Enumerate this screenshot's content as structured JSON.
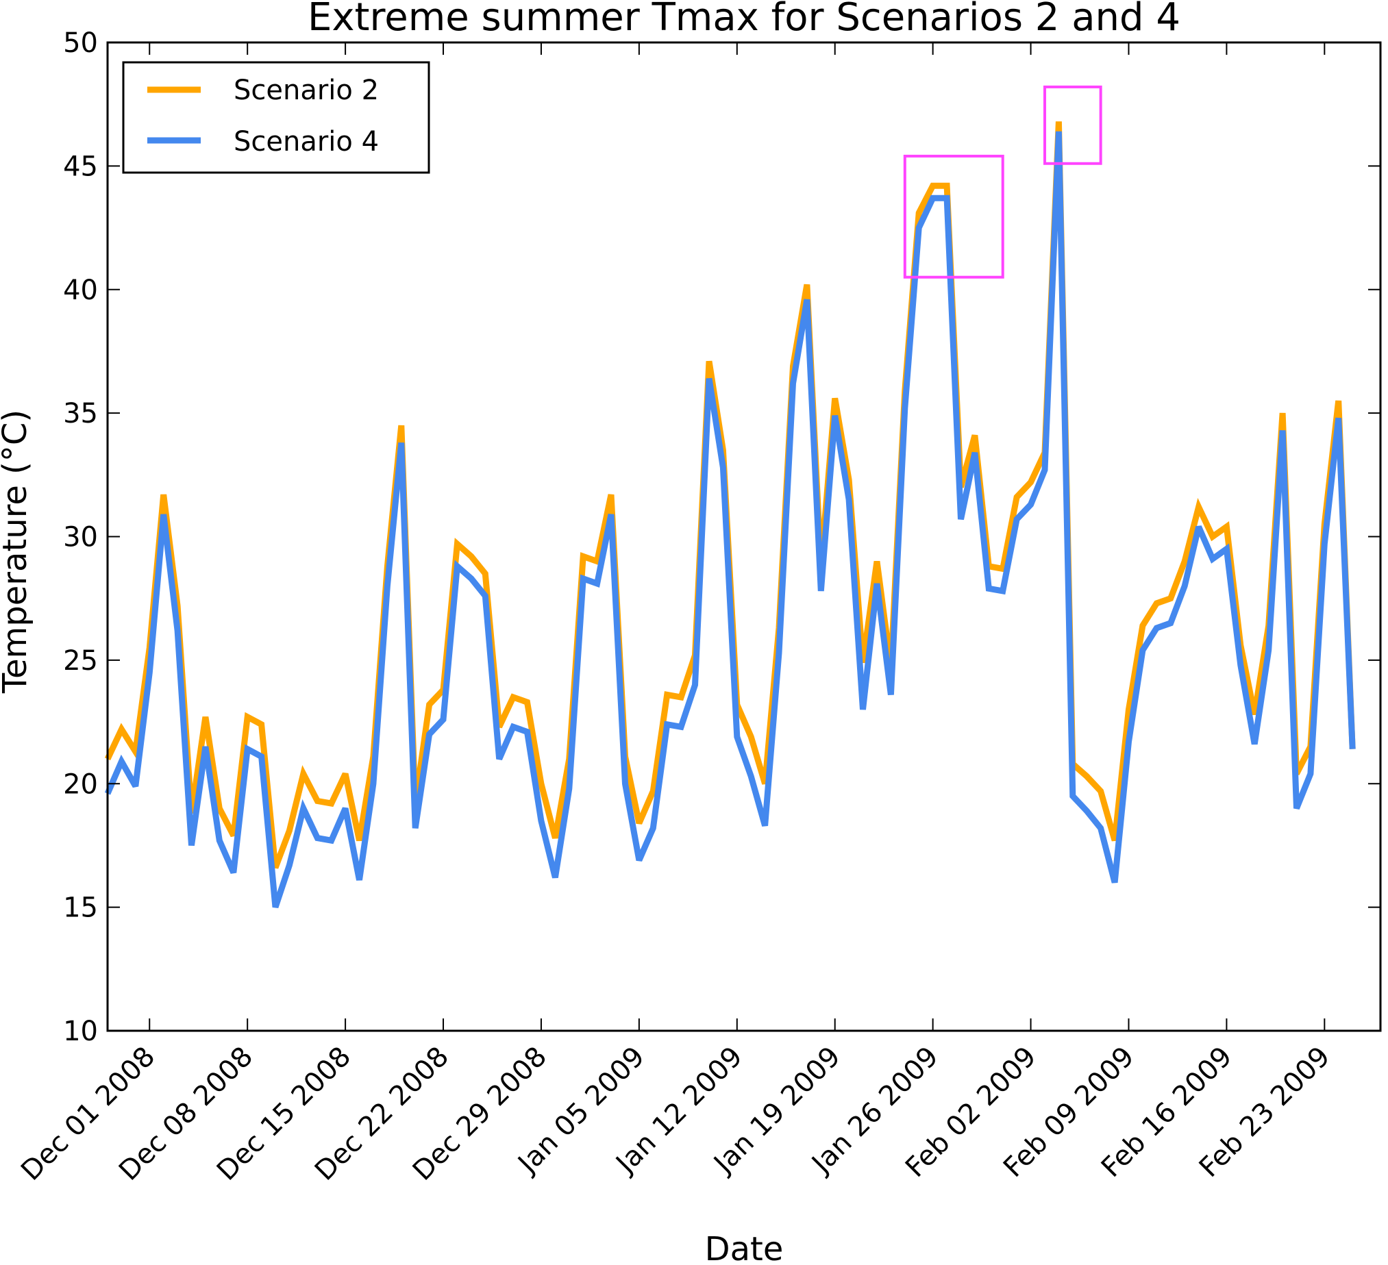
{
  "chart_data": {
    "type": "line",
    "title": "Extreme summer Tmax for Scenarios 2 and 4",
    "xlabel": "Date",
    "ylabel": "Temperature (°C)",
    "ylim": [
      10,
      50
    ],
    "yticks": [
      10,
      15,
      20,
      25,
      30,
      35,
      40,
      45,
      50
    ],
    "x_start": "2008-11-28",
    "x_end": "2009-02-27",
    "xtick_labels": [
      "Dec 01 2008",
      "Dec 08 2008",
      "Dec 15 2008",
      "Dec 22 2008",
      "Dec 29 2008",
      "Jan 05 2009",
      "Jan 12 2009",
      "Jan 19 2009",
      "Jan 26 2009",
      "Feb 02 2009",
      "Feb 09 2009",
      "Feb 16 2009",
      "Feb 23 2009"
    ],
    "xtick_dates": [
      "2008-12-01",
      "2008-12-08",
      "2008-12-15",
      "2008-12-22",
      "2008-12-29",
      "2009-01-05",
      "2009-01-12",
      "2009-01-19",
      "2009-01-26",
      "2009-02-02",
      "2009-02-09",
      "2009-02-16",
      "2009-02-23"
    ],
    "grid": false,
    "legend_position": "top-left",
    "x_dates": [
      "2008-11-28",
      "2008-11-29",
      "2008-11-30",
      "2008-12-01",
      "2008-12-02",
      "2008-12-03",
      "2008-12-04",
      "2008-12-05",
      "2008-12-06",
      "2008-12-07",
      "2008-12-08",
      "2008-12-09",
      "2008-12-10",
      "2008-12-11",
      "2008-12-12",
      "2008-12-13",
      "2008-12-14",
      "2008-12-15",
      "2008-12-16",
      "2008-12-17",
      "2008-12-18",
      "2008-12-19",
      "2008-12-20",
      "2008-12-21",
      "2008-12-22",
      "2008-12-23",
      "2008-12-24",
      "2008-12-25",
      "2008-12-26",
      "2008-12-27",
      "2008-12-28",
      "2008-12-29",
      "2008-12-30",
      "2008-12-31",
      "2009-01-01",
      "2009-01-02",
      "2009-01-03",
      "2009-01-04",
      "2009-01-05",
      "2009-01-06",
      "2009-01-07",
      "2009-01-08",
      "2009-01-09",
      "2009-01-10",
      "2009-01-11",
      "2009-01-12",
      "2009-01-13",
      "2009-01-14",
      "2009-01-15",
      "2009-01-16",
      "2009-01-17",
      "2009-01-18",
      "2009-01-19",
      "2009-01-20",
      "2009-01-21",
      "2009-01-22",
      "2009-01-23",
      "2009-01-24",
      "2009-01-25",
      "2009-01-26",
      "2009-01-27",
      "2009-01-28",
      "2009-01-29",
      "2009-01-30",
      "2009-01-31",
      "2009-02-01",
      "2009-02-02",
      "2009-02-03",
      "2009-02-04",
      "2009-02-05",
      "2009-02-06",
      "2009-02-07",
      "2009-02-08",
      "2009-02-09",
      "2009-02-10",
      "2009-02-11",
      "2009-02-12",
      "2009-02-13",
      "2009-02-14",
      "2009-02-15",
      "2009-02-16",
      "2009-02-17",
      "2009-02-18",
      "2009-02-19",
      "2009-02-20",
      "2009-02-21",
      "2009-02-22",
      "2009-02-23",
      "2009-02-24",
      "2009-02-25",
      "2009-02-26",
      "2009-02-27"
    ],
    "series": [
      {
        "name": "Scenario 2",
        "color": "#FFA500",
        "values": [
          21.0,
          22.2,
          21.3,
          25.5,
          31.7,
          27.2,
          18.8,
          22.7,
          19.0,
          17.9,
          22.7,
          22.4,
          16.6,
          18.1,
          20.4,
          19.3,
          19.2,
          20.4,
          17.7,
          21.1,
          28.8,
          34.5,
          19.2,
          23.2,
          23.8,
          29.7,
          29.2,
          28.5,
          22.3,
          23.5,
          23.3,
          20.0,
          17.8,
          21.0,
          29.2,
          29.0,
          31.7,
          21.1,
          18.4,
          19.7,
          23.6,
          23.5,
          25.2,
          37.1,
          33.5,
          23.2,
          21.9,
          20.0,
          26.3,
          36.9,
          40.2,
          28.8,
          35.6,
          32.3,
          24.9,
          29.0,
          24.7,
          35.9,
          43.1,
          44.2,
          44.2,
          32.0,
          34.1,
          28.8,
          28.7,
          31.6,
          32.2,
          33.4,
          46.8,
          20.8,
          20.3,
          19.7,
          17.7,
          23.0,
          26.4,
          27.3,
          27.5,
          29.0,
          31.2,
          30.0,
          30.4,
          25.6,
          22.8,
          26.4,
          35.0,
          20.4,
          21.5,
          30.5,
          35.5,
          21.4
        ]
      },
      {
        "name": "Scenario 4",
        "color": "#4488EE",
        "values": [
          19.6,
          20.9,
          19.9,
          24.5,
          30.9,
          26.2,
          17.5,
          21.5,
          17.7,
          16.4,
          21.4,
          21.1,
          15.0,
          16.7,
          19.0,
          17.8,
          17.7,
          19.0,
          16.1,
          20.0,
          28.0,
          33.8,
          18.2,
          22.0,
          22.6,
          28.8,
          28.3,
          27.6,
          21.0,
          22.3,
          22.1,
          18.5,
          16.2,
          19.8,
          28.3,
          28.1,
          30.9,
          20.0,
          16.9,
          18.2,
          22.4,
          22.3,
          24.0,
          36.4,
          32.8,
          21.9,
          20.3,
          18.3,
          25.3,
          36.2,
          39.6,
          27.8,
          34.9,
          31.5,
          23.0,
          28.1,
          23.6,
          35.2,
          42.5,
          43.7,
          43.7,
          30.7,
          33.4,
          27.9,
          27.8,
          30.7,
          31.3,
          32.7,
          46.4,
          19.5,
          18.9,
          18.2,
          16.0,
          21.7,
          25.4,
          26.3,
          26.5,
          28.0,
          30.4,
          29.1,
          29.5,
          24.8,
          21.6,
          25.4,
          34.3,
          19.0,
          20.4,
          29.7,
          34.8,
          21.4
        ]
      }
    ],
    "annotations": [
      {
        "type": "box",
        "color": "#FF44FF",
        "x_range": [
          "2009-01-24",
          "2009-01-31"
        ],
        "y_range": [
          40.5,
          45.4
        ]
      },
      {
        "type": "box",
        "color": "#FF44FF",
        "x_range": [
          "2009-02-03",
          "2009-02-07"
        ],
        "y_range": [
          45.1,
          48.2
        ]
      }
    ]
  }
}
